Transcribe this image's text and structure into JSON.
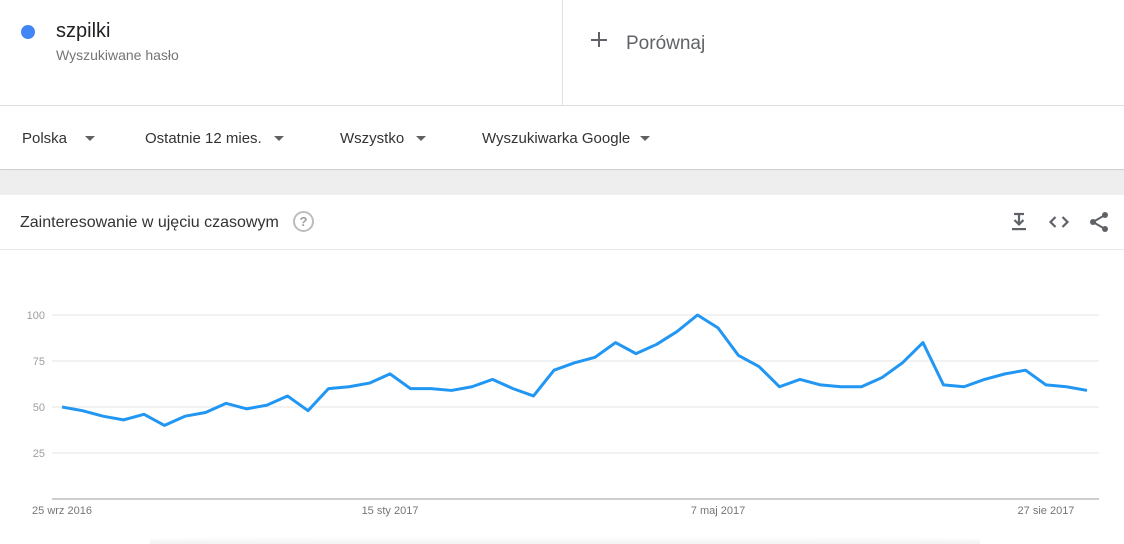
{
  "term": {
    "name": "szpilki",
    "subtitle": "Wyszukiwane hasło",
    "color": "#4285f4"
  },
  "compare": {
    "label": "Porównaj",
    "icon": "plus-icon"
  },
  "filters": [
    {
      "label": "Polska"
    },
    {
      "label": "Ostatnie 12 mies."
    },
    {
      "label": "Wszystko"
    },
    {
      "label": "Wyszukiwarka Google"
    }
  ],
  "card": {
    "title": "Zainteresowanie w ujęciu czasowym",
    "help_icon": "question-icon",
    "help_glyph": "?",
    "icons": [
      "download-icon",
      "embed-code-icon",
      "share-icon"
    ]
  },
  "chart_data": {
    "type": "line",
    "title": "",
    "xlabel": "",
    "ylabel": "",
    "ylim": [
      0,
      100
    ],
    "yticks": [
      25,
      50,
      75,
      100
    ],
    "ytick_labels": [
      "25",
      "50",
      "75",
      "100"
    ],
    "grid": true,
    "line_color": "#2196f3",
    "x_tick_labels": [
      {
        "label": "25 wrz 2016",
        "index": 0
      },
      {
        "label": "15 sty 2017",
        "index": 16
      },
      {
        "label": "7 maj 2017",
        "index": 32
      },
      {
        "label": "27 sie 2017",
        "index": 48
      }
    ],
    "series": [
      {
        "values": [
          50,
          48,
          45,
          43,
          46,
          40,
          45,
          47,
          52,
          49,
          51,
          56,
          48,
          60,
          61,
          63,
          68,
          60,
          60,
          59,
          61,
          65,
          60,
          56,
          70,
          74,
          77,
          85,
          79,
          84,
          91,
          100,
          93,
          78,
          72,
          61,
          65,
          62,
          61,
          61,
          66,
          74,
          85,
          62,
          61,
          65,
          68,
          70,
          62,
          61,
          59
        ]
      }
    ]
  }
}
